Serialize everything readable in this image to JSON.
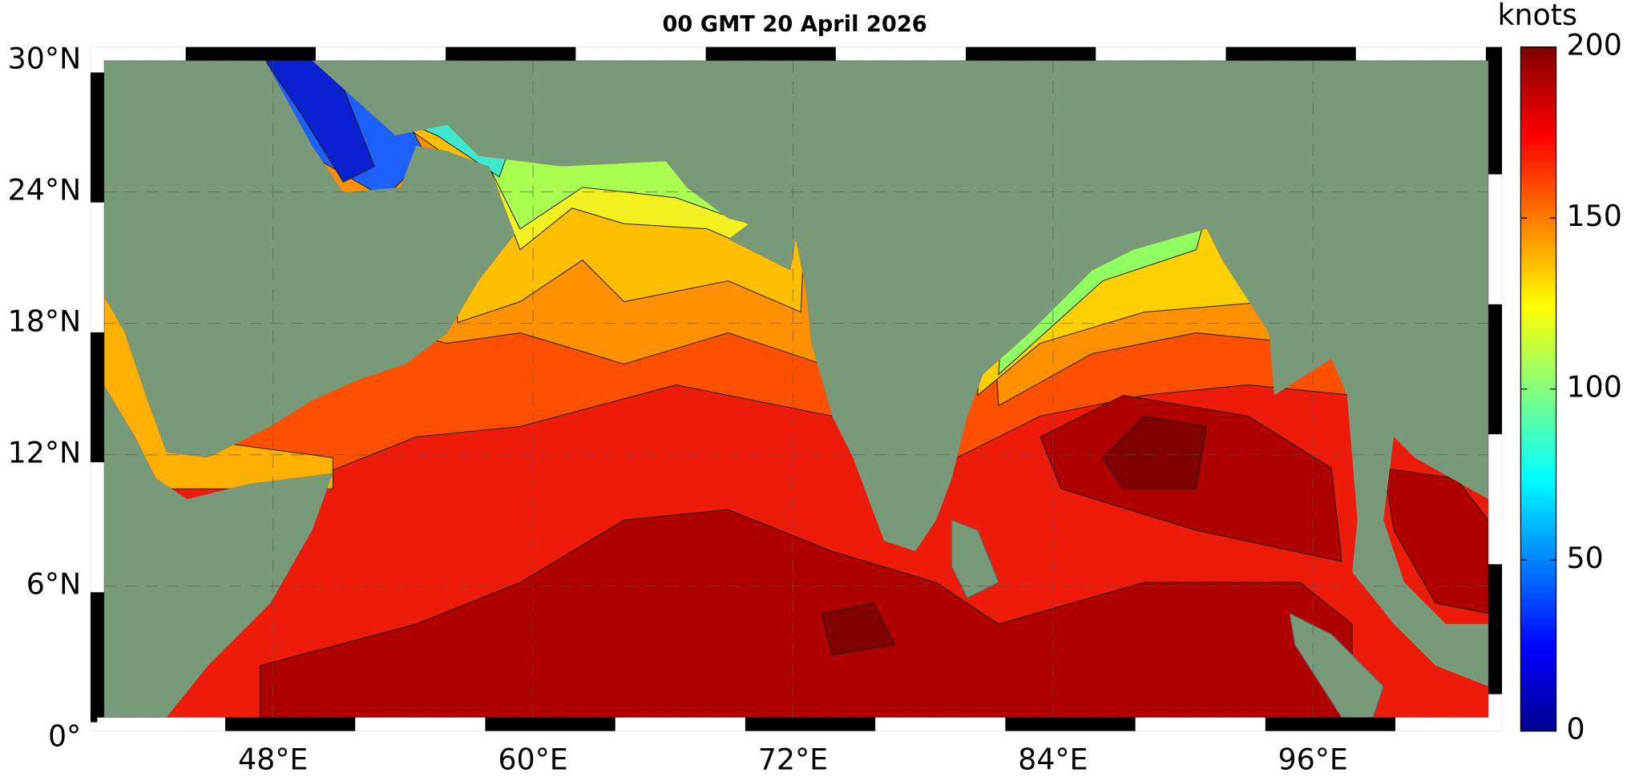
{
  "title": "00 GMT 20 April 2026",
  "map": {
    "lon_lim": [
      40.2,
      104.1
    ],
    "lat_lim": [
      0,
      30
    ],
    "lon_ticks": [
      {
        "value": 48,
        "label": "48°E"
      },
      {
        "value": 60,
        "label": "60°E"
      },
      {
        "value": 72,
        "label": "72°E"
      },
      {
        "value": 84,
        "label": "84°E"
      },
      {
        "value": 96,
        "label": "96°E"
      }
    ],
    "lat_ticks": [
      {
        "value": 0,
        "label": "0°"
      },
      {
        "value": 6,
        "label": "6°N"
      },
      {
        "value": 12,
        "label": "12°N"
      },
      {
        "value": 18,
        "label": "18°N"
      },
      {
        "value": 24,
        "label": "24°N"
      },
      {
        "value": 30,
        "label": "30°N"
      }
    ]
  },
  "colorbar": {
    "label": "knots",
    "lim": [
      0,
      200
    ],
    "ticks": [
      0,
      50,
      100,
      150,
      200
    ]
  }
}
